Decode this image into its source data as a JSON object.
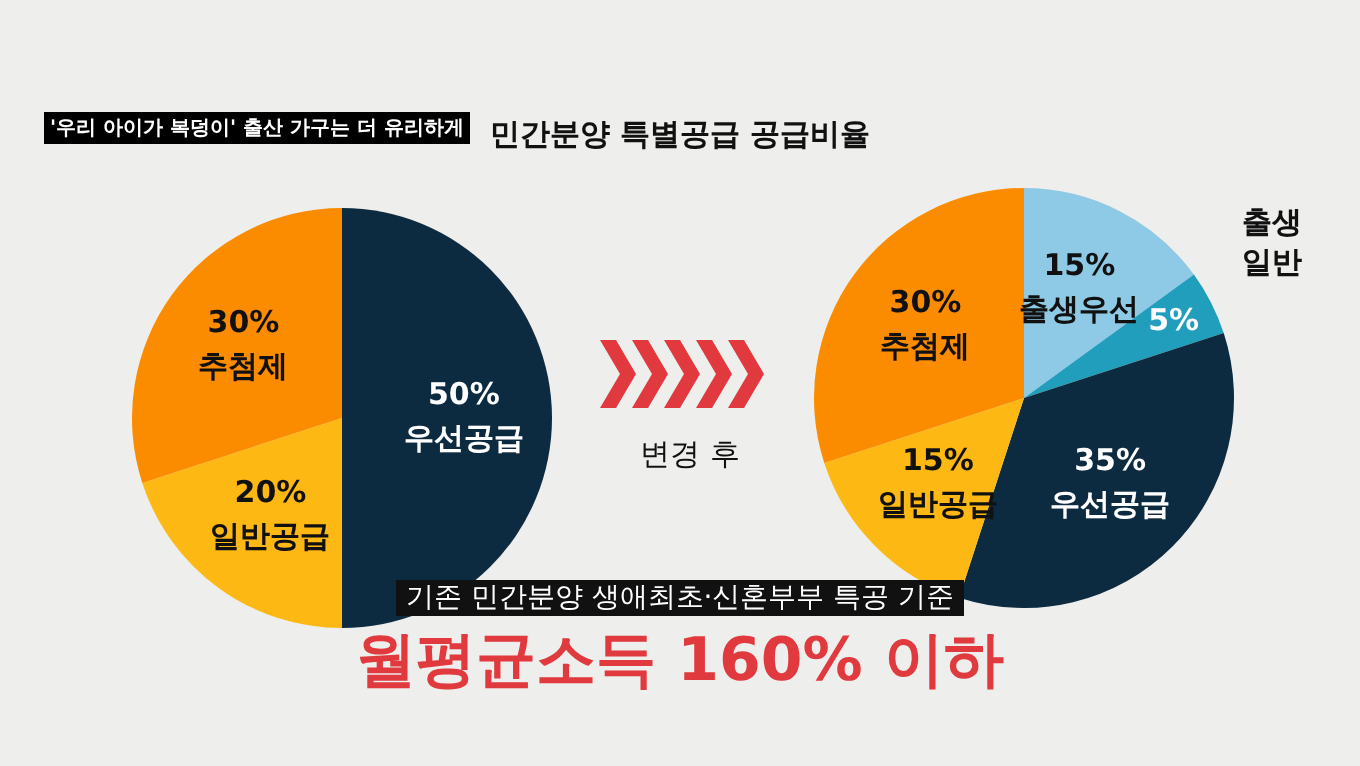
{
  "chart_data": [
    {
      "type": "pie",
      "title": "민간분양 특별공급 공급비율",
      "subtitle": "'우리 아이가 복덩이' 출산 가구는 더 유리하게",
      "categories": [
        "우선공급",
        "일반공급",
        "추첨제"
      ],
      "values": [
        50,
        20,
        30
      ],
      "value_labels": [
        "50%",
        "20%",
        "30%"
      ],
      "colors": [
        "#0d2b40",
        "#fdb813",
        "#fb8c00"
      ],
      "annotations": [
        "기존 민간분양 생애최초·신혼부부 특공 기준",
        "월평균소득 160% 이하"
      ],
      "legend": false
    },
    {
      "type": "pie",
      "categories": [
        "출생우선",
        "출생 일반",
        "우선공급",
        "일반공급",
        "추첨제"
      ],
      "values": [
        15,
        5,
        35,
        15,
        30
      ],
      "value_labels": [
        "15%",
        "5%",
        "35%",
        "15%",
        "30%"
      ],
      "colors": [
        "#8ecae6",
        "#219ebc",
        "#0d2b40",
        "#fdb813",
        "#fb8c00"
      ],
      "annotations": [
        "변경 후"
      ],
      "legend": false
    }
  ]
}
